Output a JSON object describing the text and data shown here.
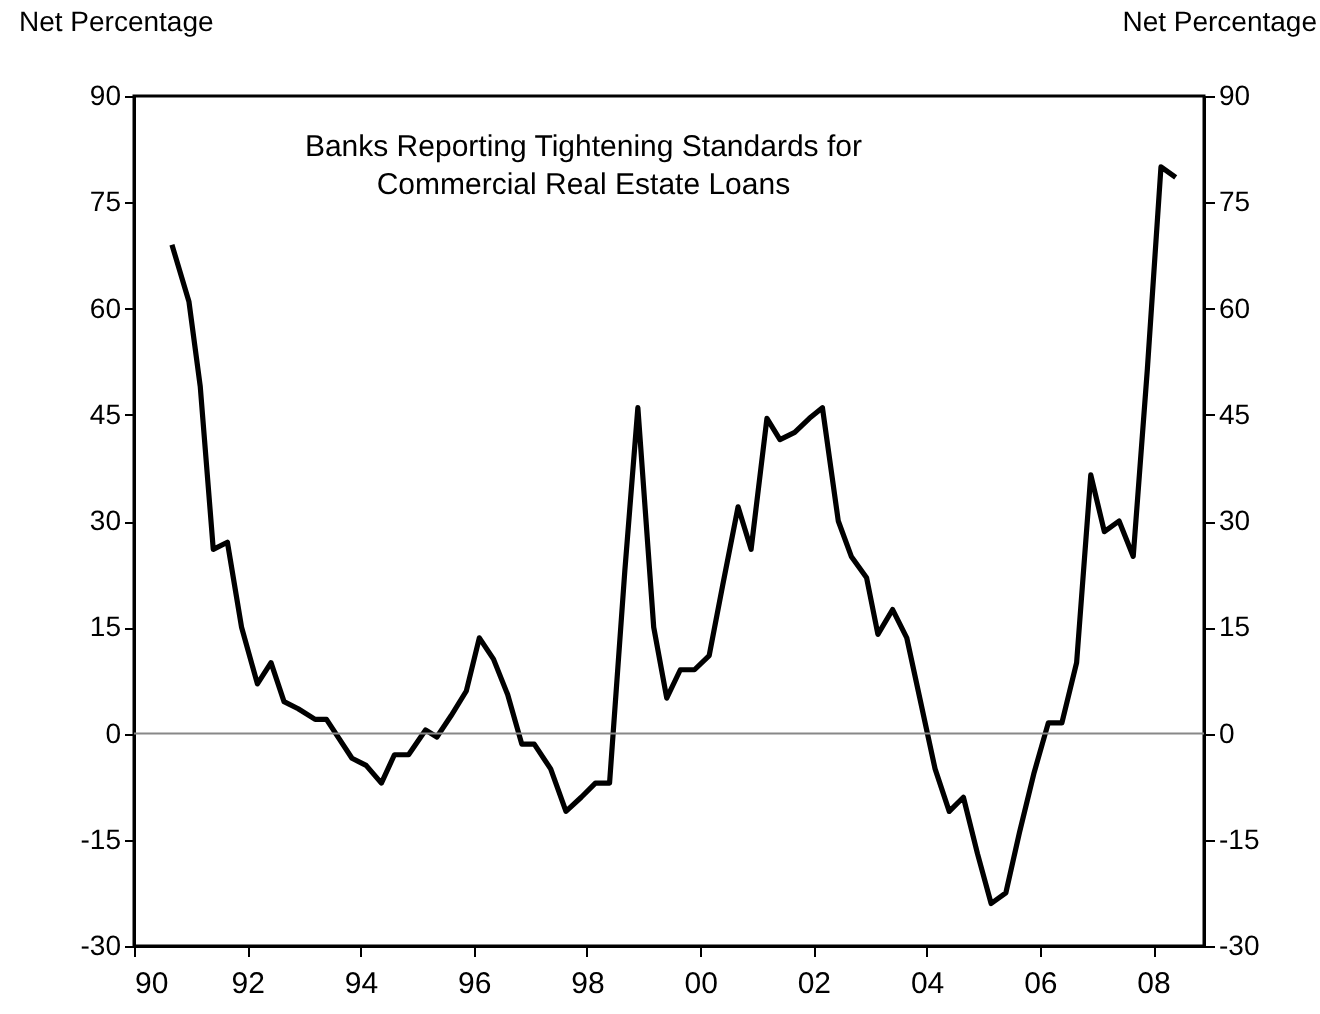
{
  "chart_data": {
    "type": "line",
    "title": "Banks Reporting Tightening Standards for\nCommercial Real Estate Loans",
    "ylabel": "Net Percentage",
    "y2label": "Net Percentage",
    "series": [
      {
        "color": "#000000",
        "x": [
          1990.67,
          1990.97,
          1991.17,
          1991.4,
          1991.65,
          1991.9,
          1992.18,
          1992.42,
          1992.65,
          1992.9,
          1993.2,
          1993.4,
          1993.85,
          1994.1,
          1994.37,
          1994.6,
          1994.85,
          1995.15,
          1995.35,
          1995.6,
          1995.87,
          1996.1,
          1996.35,
          1996.6,
          1996.85,
          1997.07,
          1997.36,
          1997.63,
          1997.9,
          1998.15,
          1998.4,
          1998.67,
          1998.9,
          1999.18,
          1999.41,
          1999.65,
          1999.9,
          2000.16,
          2000.4,
          2000.67,
          2000.9,
          2001.18,
          2001.41,
          2001.67,
          2001.93,
          2002.16,
          2002.44,
          2002.67,
          2002.94,
          2003.14,
          2003.4,
          2003.65,
          2003.88,
          2004.15,
          2004.4,
          2004.65,
          2004.9,
          2005.14,
          2005.4,
          2005.64,
          2005.9,
          2006.15,
          2006.39,
          2006.65,
          2006.9,
          2007.14,
          2007.4,
          2007.65,
          2007.9,
          2008.14,
          2008.4
        ],
        "values": [
          69,
          61,
          49,
          26,
          27,
          15,
          7,
          10,
          4.5,
          3.5,
          2,
          2,
          -3.5,
          -4.5,
          -7,
          -3,
          -3,
          0.5,
          -0.5,
          2.5,
          6,
          13.5,
          10.5,
          5.5,
          -1.5,
          -1.5,
          -5,
          -11,
          -9,
          -7,
          -7,
          23,
          46,
          15,
          5,
          9,
          9,
          11,
          21,
          32,
          26,
          44.5,
          41.5,
          42.5,
          44.5,
          46,
          30,
          25,
          22,
          14,
          17.5,
          13.5,
          5,
          -5,
          -11,
          -9,
          -17,
          -24,
          -22.5,
          -14,
          -5.5,
          1.5,
          1.5,
          10,
          36.5,
          28.5,
          30,
          25,
          51.5,
          80,
          78.5
        ]
      }
    ],
    "xlim": [
      1990,
      2008.9
    ],
    "xticks": [
      {
        "value": 1990,
        "label": "90"
      },
      {
        "value": 1992,
        "label": "92"
      },
      {
        "value": 1994,
        "label": "94"
      },
      {
        "value": 1996,
        "label": "96"
      },
      {
        "value": 1998,
        "label": "98"
      },
      {
        "value": 2000,
        "label": "00"
      },
      {
        "value": 2002,
        "label": "02"
      },
      {
        "value": 2004,
        "label": "04"
      },
      {
        "value": 2006,
        "label": "06"
      },
      {
        "value": 2008,
        "label": "08"
      }
    ],
    "ylim": [
      -30,
      90
    ],
    "yticks": [
      -30,
      -15,
      0,
      15,
      30,
      45,
      60,
      75,
      90
    ],
    "y2lim": [
      -30,
      90
    ],
    "y2ticks": [
      -30,
      -15,
      0,
      15,
      30,
      45,
      60,
      75,
      90
    ],
    "ref_lines": [
      {
        "axis": "y",
        "value": 0,
        "color": "#888888"
      }
    ],
    "grid": false,
    "marker": "none",
    "line_style": "solid"
  }
}
